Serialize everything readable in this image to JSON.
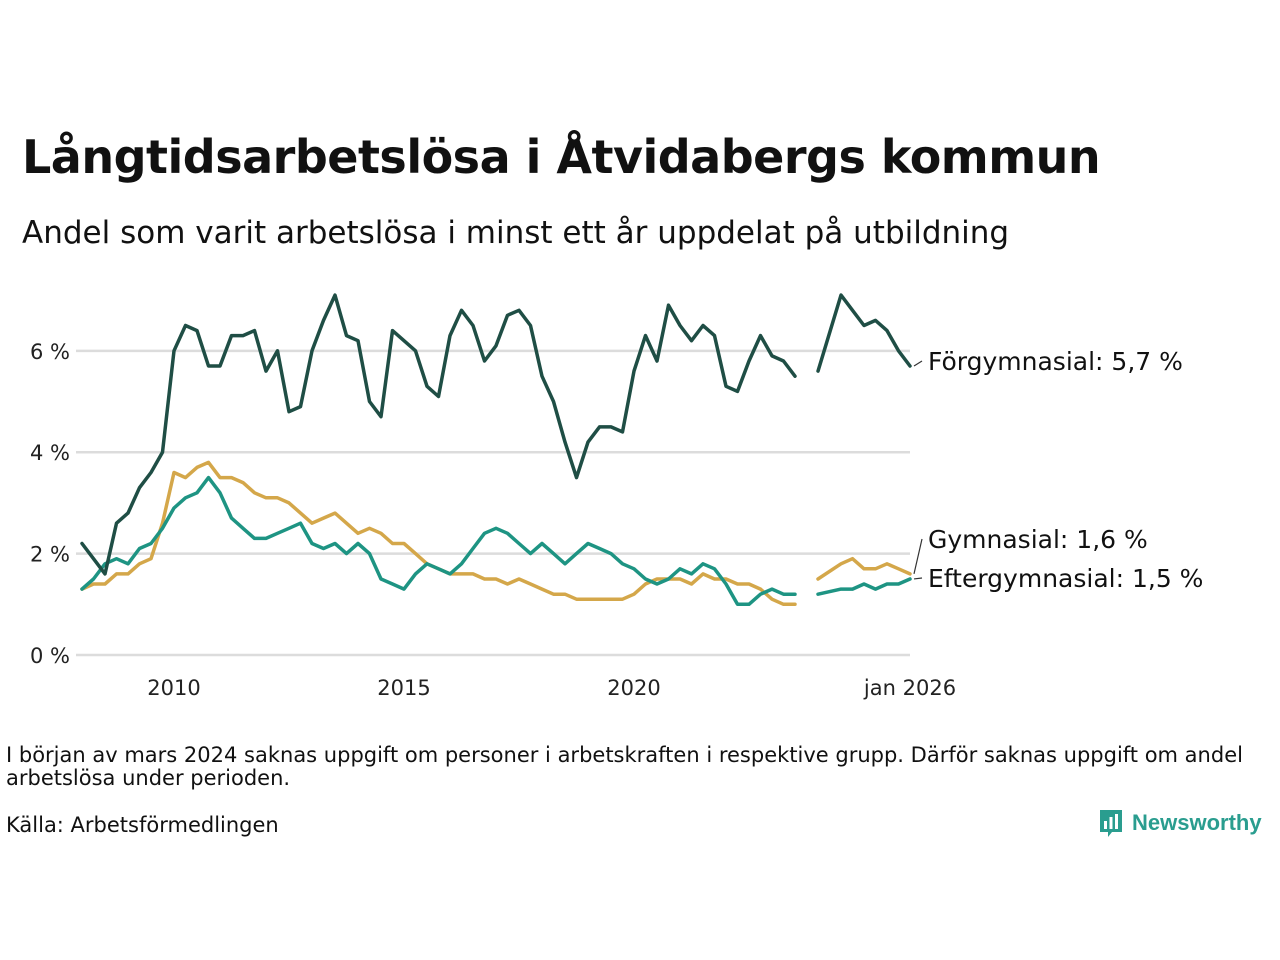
{
  "title": "Långtidsarbetslösa i Åtvidabergs kommun",
  "subtitle": "Andel som varit arbetslösa i minst ett år uppdelat på utbildning",
  "note": "I början av mars 2024 saknas uppgift om personer i arbetskraften i respektive grupp. Därför saknas uppgift om andel arbetslösa under perioden.",
  "source": "Källa: Arbetsförmedlingen",
  "brand": "Newsworthy",
  "colors": {
    "forgymnasial": "#1f4e45",
    "gymnasial": "#d4a74a",
    "eftergymnasial": "#1e9483",
    "grid": "#dcdcdc",
    "brand": "#2a9d8f"
  },
  "chart_data": {
    "type": "line",
    "title": "Långtidsarbetslösa i Åtvidabergs kommun",
    "xlabel": "",
    "ylabel": "",
    "ylim": [
      0,
      7.2
    ],
    "xlim": [
      2008.0,
      2026.0
    ],
    "yticks": [
      0,
      2,
      4,
      6
    ],
    "ytick_labels": [
      "0 %",
      "2 %",
      "4 %",
      "6 %"
    ],
    "xticks": [
      2010,
      2015,
      2020,
      2026
    ],
    "xtick_labels": [
      "2010",
      "2015",
      "2020",
      "jan 2026"
    ],
    "gap": [
      2024.08,
      2024.4
    ],
    "series": [
      {
        "name": "Förgymnasial",
        "label": "Förgymnasial: 5,7 %",
        "color_key": "forgymnasial",
        "x": [
          2008.0,
          2008.25,
          2008.5,
          2008.75,
          2009.0,
          2009.25,
          2009.5,
          2009.75,
          2010.0,
          2010.25,
          2010.5,
          2010.75,
          2011.0,
          2011.25,
          2011.5,
          2011.75,
          2012.0,
          2012.25,
          2012.5,
          2012.75,
          2013.0,
          2013.25,
          2013.5,
          2013.75,
          2014.0,
          2014.25,
          2014.5,
          2014.75,
          2015.0,
          2015.25,
          2015.5,
          2015.75,
          2016.0,
          2016.25,
          2016.5,
          2016.75,
          2017.0,
          2017.25,
          2017.5,
          2017.75,
          2018.0,
          2018.25,
          2018.5,
          2018.75,
          2019.0,
          2019.25,
          2019.5,
          2019.75,
          2020.0,
          2020.25,
          2020.5,
          2020.75,
          2021.0,
          2021.25,
          2021.5,
          2021.75,
          2022.0,
          2022.25,
          2022.5,
          2022.75,
          2023.0,
          2023.25,
          2023.5,
          2023.75,
          2024.0,
          2024.5,
          2024.75,
          2025.0,
          2025.25,
          2025.5,
          2025.75,
          2026.0
        ],
        "y": [
          2.2,
          1.9,
          1.6,
          2.6,
          2.8,
          3.3,
          3.6,
          4.0,
          6.0,
          6.5,
          6.4,
          5.7,
          5.7,
          6.3,
          6.3,
          6.4,
          5.6,
          6.0,
          4.8,
          4.9,
          6.0,
          6.6,
          7.1,
          6.3,
          6.2,
          5.0,
          4.7,
          6.4,
          6.2,
          6.0,
          5.3,
          5.1,
          6.3,
          6.8,
          6.5,
          5.8,
          6.1,
          6.7,
          6.8,
          6.5,
          5.5,
          5.0,
          4.2,
          3.5,
          4.2,
          4.5,
          4.5,
          4.4,
          5.6,
          6.3,
          5.8,
          6.9,
          6.5,
          6.2,
          6.5,
          6.3,
          5.3,
          5.2,
          5.8,
          6.3,
          5.9,
          5.8,
          5.5,
          null,
          5.6,
          7.1,
          6.8,
          6.5,
          6.6,
          6.4,
          6.0,
          5.7
        ]
      },
      {
        "name": "Gymnasial",
        "label": "Gymnasial: 1,6 %",
        "color_key": "gymnasial",
        "x": [
          2008.0,
          2008.25,
          2008.5,
          2008.75,
          2009.0,
          2009.25,
          2009.5,
          2009.75,
          2010.0,
          2010.25,
          2010.5,
          2010.75,
          2011.0,
          2011.25,
          2011.5,
          2011.75,
          2012.0,
          2012.25,
          2012.5,
          2012.75,
          2013.0,
          2013.25,
          2013.5,
          2013.75,
          2014.0,
          2014.25,
          2014.5,
          2014.75,
          2015.0,
          2015.25,
          2015.5,
          2015.75,
          2016.0,
          2016.25,
          2016.5,
          2016.75,
          2017.0,
          2017.25,
          2017.5,
          2017.75,
          2018.0,
          2018.25,
          2018.5,
          2018.75,
          2019.0,
          2019.25,
          2019.5,
          2019.75,
          2020.0,
          2020.25,
          2020.5,
          2020.75,
          2021.0,
          2021.25,
          2021.5,
          2021.75,
          2022.0,
          2022.25,
          2022.5,
          2022.75,
          2023.0,
          2023.25,
          2023.5,
          2023.75,
          2024.0,
          2024.5,
          2024.75,
          2025.0,
          2025.25,
          2025.5,
          2025.75,
          2026.0
        ],
        "y": [
          1.3,
          1.4,
          1.4,
          1.6,
          1.6,
          1.8,
          1.9,
          2.6,
          3.6,
          3.5,
          3.7,
          3.8,
          3.5,
          3.5,
          3.4,
          3.2,
          3.1,
          3.1,
          3.0,
          2.8,
          2.6,
          2.7,
          2.8,
          2.6,
          2.4,
          2.5,
          2.4,
          2.2,
          2.2,
          2.0,
          1.8,
          1.7,
          1.6,
          1.6,
          1.6,
          1.5,
          1.5,
          1.4,
          1.5,
          1.4,
          1.3,
          1.2,
          1.2,
          1.1,
          1.1,
          1.1,
          1.1,
          1.1,
          1.2,
          1.4,
          1.5,
          1.5,
          1.5,
          1.4,
          1.6,
          1.5,
          1.5,
          1.4,
          1.4,
          1.3,
          1.1,
          1.0,
          1.0,
          null,
          1.5,
          1.8,
          1.9,
          1.7,
          1.7,
          1.8,
          1.7,
          1.6
        ]
      },
      {
        "name": "Eftergymnasial",
        "label": "Eftergymnasial: 1,5 %",
        "color_key": "eftergymnasial",
        "x": [
          2008.0,
          2008.25,
          2008.5,
          2008.75,
          2009.0,
          2009.25,
          2009.5,
          2009.75,
          2010.0,
          2010.25,
          2010.5,
          2010.75,
          2011.0,
          2011.25,
          2011.5,
          2011.75,
          2012.0,
          2012.25,
          2012.5,
          2012.75,
          2013.0,
          2013.25,
          2013.5,
          2013.75,
          2014.0,
          2014.25,
          2014.5,
          2014.75,
          2015.0,
          2015.25,
          2015.5,
          2015.75,
          2016.0,
          2016.25,
          2016.5,
          2016.75,
          2017.0,
          2017.25,
          2017.5,
          2017.75,
          2018.0,
          2018.25,
          2018.5,
          2018.75,
          2019.0,
          2019.25,
          2019.5,
          2019.75,
          2020.0,
          2020.25,
          2020.5,
          2020.75,
          2021.0,
          2021.25,
          2021.5,
          2021.75,
          2022.0,
          2022.25,
          2022.5,
          2022.75,
          2023.0,
          2023.25,
          2023.5,
          2023.75,
          2024.0,
          2024.5,
          2024.75,
          2025.0,
          2025.25,
          2025.5,
          2025.75,
          2026.0
        ],
        "y": [
          1.3,
          1.5,
          1.8,
          1.9,
          1.8,
          2.1,
          2.2,
          2.5,
          2.9,
          3.1,
          3.2,
          3.5,
          3.2,
          2.7,
          2.5,
          2.3,
          2.3,
          2.4,
          2.5,
          2.6,
          2.2,
          2.1,
          2.2,
          2.0,
          2.2,
          2.0,
          1.5,
          1.4,
          1.3,
          1.6,
          1.8,
          1.7,
          1.6,
          1.8,
          2.1,
          2.4,
          2.5,
          2.4,
          2.2,
          2.0,
          2.2,
          2.0,
          1.8,
          2.0,
          2.2,
          2.1,
          2.0,
          1.8,
          1.7,
          1.5,
          1.4,
          1.5,
          1.7,
          1.6,
          1.8,
          1.7,
          1.4,
          1.0,
          1.0,
          1.2,
          1.3,
          1.2,
          1.2,
          null,
          1.2,
          1.3,
          1.3,
          1.4,
          1.3,
          1.4,
          1.4,
          1.5
        ]
      }
    ]
  }
}
